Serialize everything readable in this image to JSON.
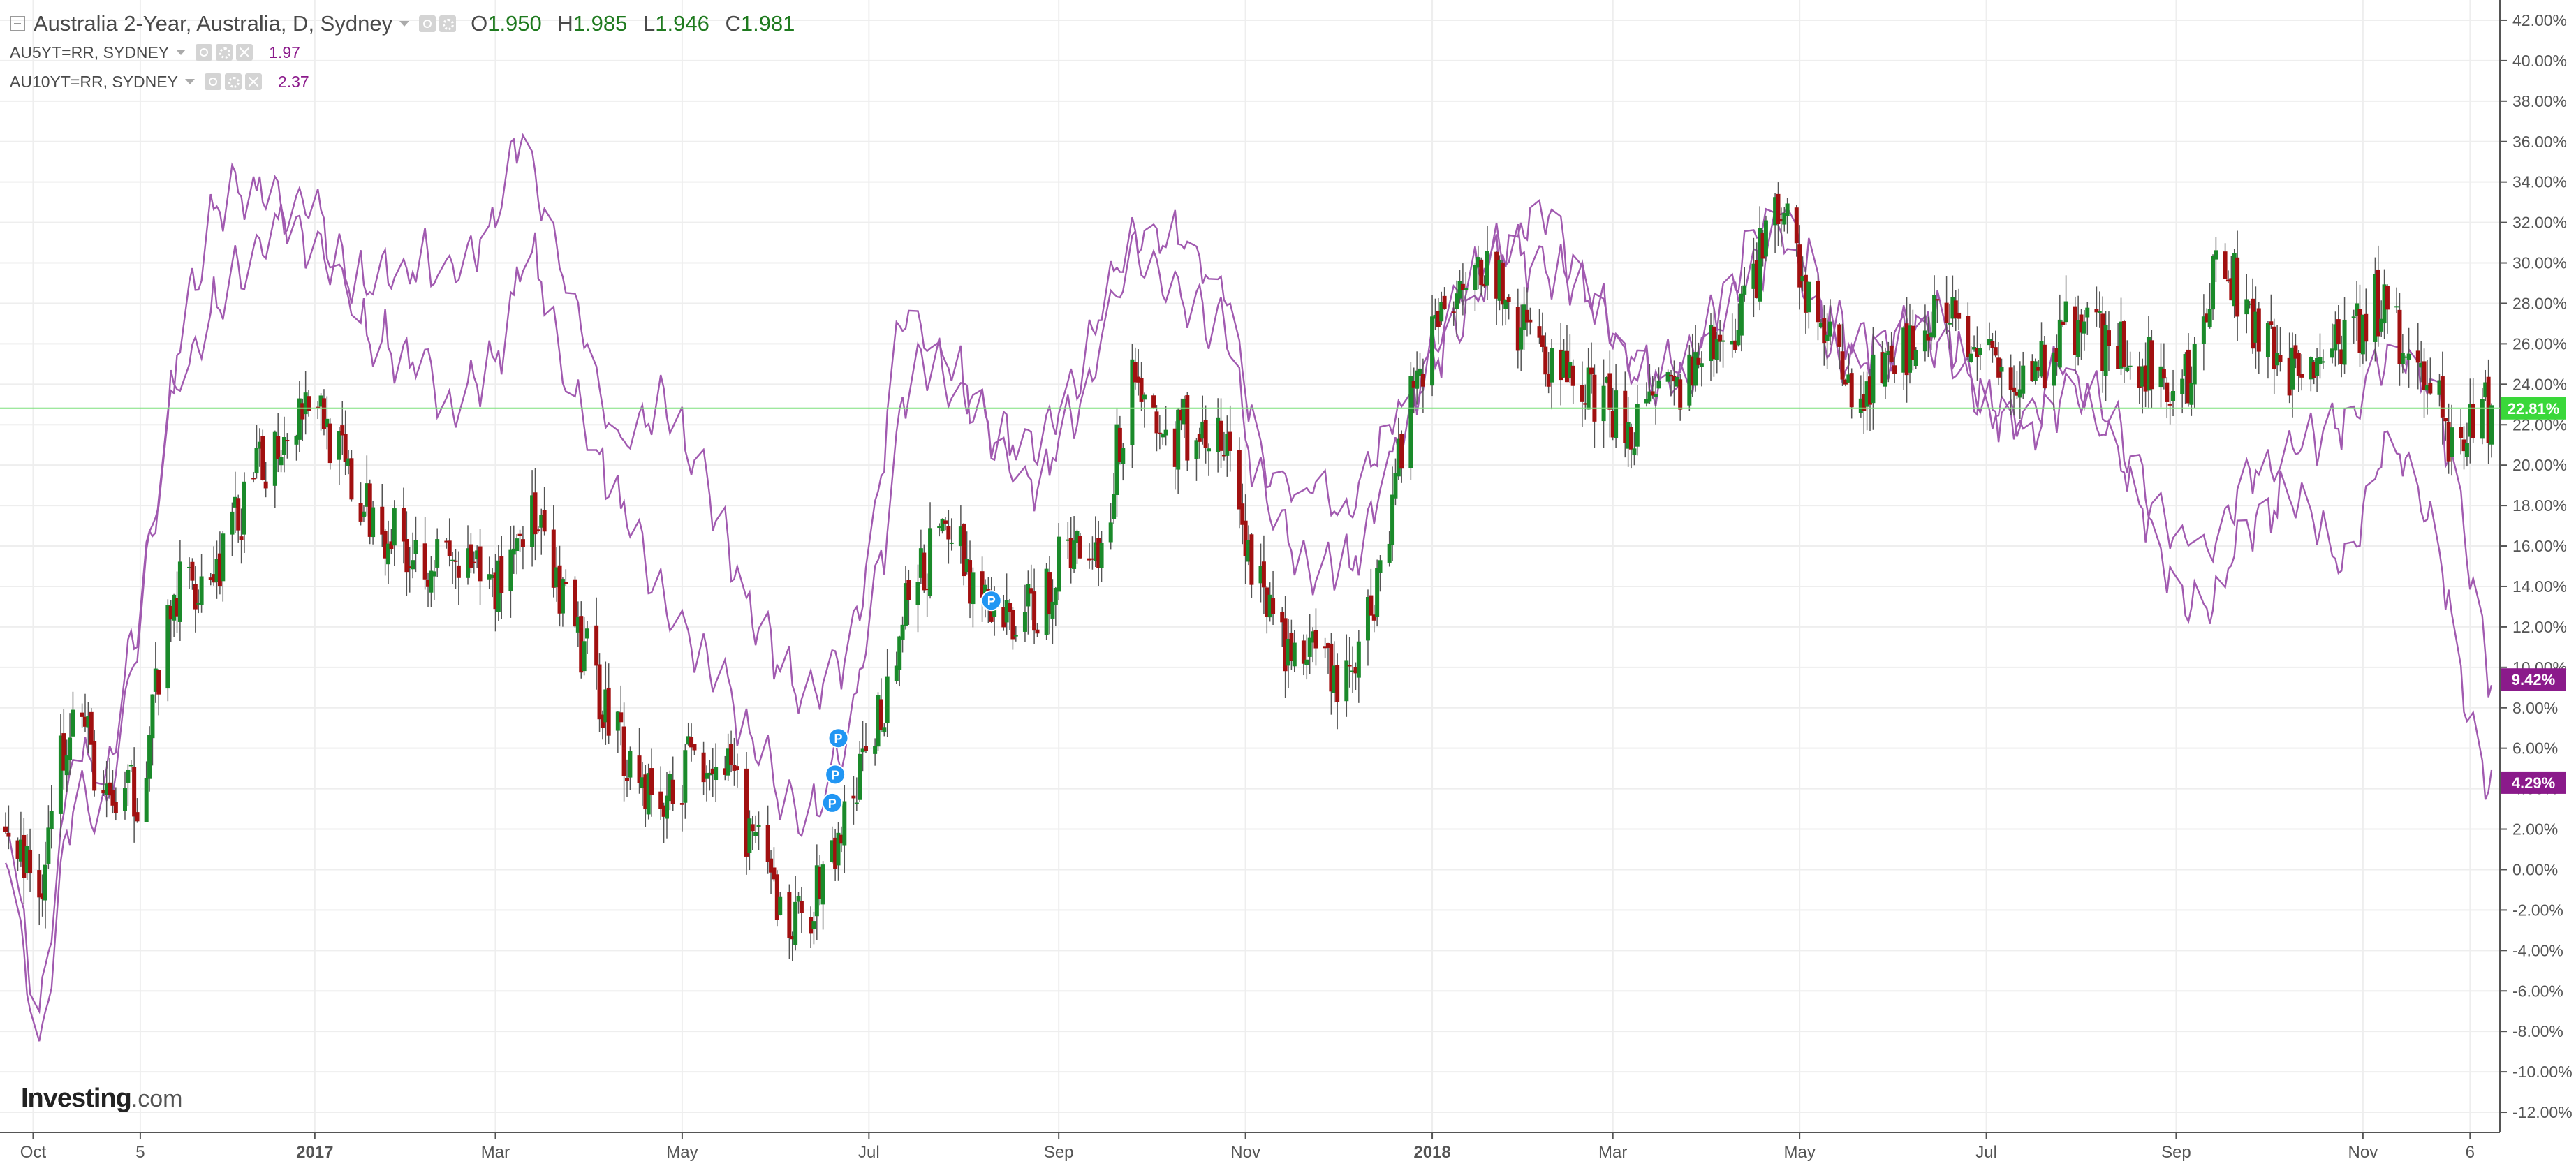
{
  "legend": {
    "main_title": "Australia 2-Year, Australia, D, Sydney",
    "ohlc": {
      "o_label": "O",
      "o": "1.950",
      "h_label": "H",
      "h": "1.985",
      "l_label": "L",
      "l": "1.946",
      "c_label": "C",
      "c": "1.981"
    },
    "overlays": [
      {
        "name": "AU5YT=RR, SYDNEY",
        "value": "1.97"
      },
      {
        "name": "AU10YT=RR, SYDNEY",
        "value": "2.37"
      }
    ]
  },
  "logo": {
    "brand": "Investing",
    "domain": ".com"
  },
  "colors": {
    "up": "#1a8a2a",
    "down": "#a11010",
    "overlay": "#a15ab0",
    "grid": "#eeeeee",
    "axis_text": "#555555",
    "current_line": "#7ee07e",
    "current_badge": "#3ad83a",
    "overlay_badge": "#8b1a8b",
    "marker": "#2196f3"
  },
  "chart_data": {
    "type": "candlestick",
    "yscale": "percent",
    "ylim": [
      -13,
      43
    ],
    "y_ticks": [
      "42.00%",
      "40.00%",
      "38.00%",
      "36.00%",
      "34.00%",
      "32.00%",
      "30.00%",
      "28.00%",
      "26.00%",
      "24.00%",
      "22.00%",
      "20.00%",
      "18.00%",
      "16.00%",
      "14.00%",
      "12.00%",
      "10.00%",
      "8.00%",
      "6.00%",
      "4.00%",
      "2.00%",
      "0.00%",
      "-2.00%",
      "-4.00%",
      "-6.00%",
      "-8.00%",
      "-10.00%",
      "-12.00%"
    ],
    "x_start": "2016-09-22",
    "x_end": "2018-12-13",
    "x_ticks": [
      {
        "label": "Oct",
        "date": "2016-10-01",
        "bold": false
      },
      {
        "label": "5",
        "date": "2016-11-05",
        "bold": false
      },
      {
        "label": "2017",
        "date": "2017-01-01",
        "bold": true
      },
      {
        "label": "Mar",
        "date": "2017-03-01",
        "bold": false
      },
      {
        "label": "May",
        "date": "2017-05-01",
        "bold": false
      },
      {
        "label": "Jul",
        "date": "2017-07-01",
        "bold": false
      },
      {
        "label": "Sep",
        "date": "2017-09-01",
        "bold": false
      },
      {
        "label": "Nov",
        "date": "2017-11-01",
        "bold": false
      },
      {
        "label": "2018",
        "date": "2018-01-01",
        "bold": true
      },
      {
        "label": "Mar",
        "date": "2018-03-01",
        "bold": false
      },
      {
        "label": "May",
        "date": "2018-05-01",
        "bold": false
      },
      {
        "label": "Jul",
        "date": "2018-07-01",
        "bold": false
      },
      {
        "label": "Sep",
        "date": "2018-09-01",
        "bold": false
      },
      {
        "label": "Nov",
        "date": "2018-11-01",
        "bold": false
      },
      {
        "label": "6",
        "date": "2018-12-06",
        "bold": false
      }
    ],
    "candles_series": {
      "name": "Australia 2-Year",
      "close_path": [
        [
          "2016-09-22",
          2
        ],
        [
          "2016-10-03",
          -1
        ],
        [
          "2016-10-14",
          9
        ],
        [
          "2016-10-25",
          3
        ],
        [
          "2016-11-05",
          4
        ],
        [
          "2016-11-10",
          9
        ],
        [
          "2016-11-18",
          14
        ],
        [
          "2016-11-30",
          15
        ],
        [
          "2016-12-15",
          20
        ],
        [
          "2016-12-31",
          24
        ],
        [
          "2017-01-15",
          18
        ],
        [
          "2017-02-01",
          16
        ],
        [
          "2017-02-15",
          15
        ],
        [
          "2017-03-01",
          14
        ],
        [
          "2017-03-12",
          18
        ],
        [
          "2017-03-20",
          14
        ],
        [
          "2017-04-01",
          10
        ],
        [
          "2017-04-15",
          5
        ],
        [
          "2017-04-25",
          3
        ],
        [
          "2017-05-05",
          6
        ],
        [
          "2017-05-15",
          5
        ],
        [
          "2017-05-25",
          1
        ],
        [
          "2017-06-05",
          -3
        ],
        [
          "2017-06-15",
          -1
        ],
        [
          "2017-06-25",
          3
        ],
        [
          "2017-07-05",
          8
        ],
        [
          "2017-07-15",
          14
        ],
        [
          "2017-07-28",
          17
        ],
        [
          "2017-08-10",
          12
        ],
        [
          "2017-08-25",
          13
        ],
        [
          "2017-09-05",
          16
        ],
        [
          "2017-09-15",
          16
        ],
        [
          "2017-09-25",
          25
        ],
        [
          "2017-10-05",
          21
        ],
        [
          "2017-10-15",
          22
        ],
        [
          "2017-10-25",
          21
        ],
        [
          "2017-11-05",
          14
        ],
        [
          "2017-11-15",
          11
        ],
        [
          "2017-11-25",
          10
        ],
        [
          "2017-12-05",
          9
        ],
        [
          "2017-12-15",
          15
        ],
        [
          "2017-12-25",
          24
        ],
        [
          "2018-01-05",
          28
        ],
        [
          "2018-01-15",
          31
        ],
        [
          "2018-01-28",
          27
        ],
        [
          "2018-02-10",
          25
        ],
        [
          "2018-02-25",
          23
        ],
        [
          "2018-03-10",
          22
        ],
        [
          "2018-03-25",
          24
        ],
        [
          "2018-04-10",
          27
        ],
        [
          "2018-04-25",
          33
        ],
        [
          "2018-05-05",
          28
        ],
        [
          "2018-05-15",
          24
        ],
        [
          "2018-05-25",
          24
        ],
        [
          "2018-06-05",
          26
        ],
        [
          "2018-06-15",
          28
        ],
        [
          "2018-06-30",
          25
        ],
        [
          "2018-07-15",
          24
        ],
        [
          "2018-07-28",
          27
        ],
        [
          "2018-08-10",
          26
        ],
        [
          "2018-08-25",
          25
        ],
        [
          "2018-09-05",
          24
        ],
        [
          "2018-09-15",
          31
        ],
        [
          "2018-09-25",
          27
        ],
        [
          "2018-10-05",
          25
        ],
        [
          "2018-10-20",
          25
        ],
        [
          "2018-11-05",
          28
        ],
        [
          "2018-11-20",
          25
        ],
        [
          "2018-12-01",
          21
        ],
        [
          "2018-12-13",
          22.8
        ]
      ]
    },
    "overlay_series": [
      {
        "name": "AU5YT=RR, SYDNEY",
        "label_value": "9.42%",
        "points": [
          [
            "2016-09-22",
            3
          ],
          [
            "2016-10-03",
            -8
          ],
          [
            "2016-10-14",
            6
          ],
          [
            "2016-10-25",
            4
          ],
          [
            "2016-11-05",
            13
          ],
          [
            "2016-11-15",
            23
          ],
          [
            "2016-11-30",
            28
          ],
          [
            "2016-12-15",
            31
          ],
          [
            "2016-12-31",
            33
          ],
          [
            "2017-01-15",
            27
          ],
          [
            "2017-02-01",
            25
          ],
          [
            "2017-02-15",
            23
          ],
          [
            "2017-03-01",
            25
          ],
          [
            "2017-03-12",
            31
          ],
          [
            "2017-03-25",
            24
          ],
          [
            "2017-04-10",
            18
          ],
          [
            "2017-04-25",
            13
          ],
          [
            "2017-05-10",
            10
          ],
          [
            "2017-05-25",
            6
          ],
          [
            "2017-06-10",
            2
          ],
          [
            "2017-06-25",
            7
          ],
          [
            "2017-07-05",
            15
          ],
          [
            "2017-07-15",
            26
          ],
          [
            "2017-07-28",
            24
          ],
          [
            "2017-08-15",
            21
          ],
          [
            "2017-08-30",
            22
          ],
          [
            "2017-09-10",
            26
          ],
          [
            "2017-09-25",
            31
          ],
          [
            "2017-10-10",
            28
          ],
          [
            "2017-10-25",
            27
          ],
          [
            "2017-11-05",
            19
          ],
          [
            "2017-11-20",
            15
          ],
          [
            "2017-12-05",
            15
          ],
          [
            "2017-12-20",
            21
          ],
          [
            "2018-01-05",
            27
          ],
          [
            "2018-01-20",
            31
          ],
          [
            "2018-02-05",
            30
          ],
          [
            "2018-02-25",
            28
          ],
          [
            "2018-03-10",
            24
          ],
          [
            "2018-03-25",
            26
          ],
          [
            "2018-04-10",
            28
          ],
          [
            "2018-04-25",
            32
          ],
          [
            "2018-05-10",
            27
          ],
          [
            "2018-05-25",
            26
          ],
          [
            "2018-06-10",
            27
          ],
          [
            "2018-06-25",
            24
          ],
          [
            "2018-07-10",
            22
          ],
          [
            "2018-07-25",
            25
          ],
          [
            "2018-08-10",
            23
          ],
          [
            "2018-08-25",
            18
          ],
          [
            "2018-09-10",
            16
          ],
          [
            "2018-09-25",
            20
          ],
          [
            "2018-10-10",
            21
          ],
          [
            "2018-10-25",
            22
          ],
          [
            "2018-11-10",
            26
          ],
          [
            "2018-11-25",
            24
          ],
          [
            "2018-12-05",
            16
          ],
          [
            "2018-12-13",
            9.4
          ]
        ]
      },
      {
        "name": "AU10YT=RR, SYDNEY",
        "label_value": "4.29%",
        "points": [
          [
            "2016-09-22",
            1
          ],
          [
            "2016-10-03",
            -9
          ],
          [
            "2016-10-14",
            4
          ],
          [
            "2016-10-25",
            3
          ],
          [
            "2016-11-05",
            12
          ],
          [
            "2016-11-18",
            27
          ],
          [
            "2016-11-30",
            33
          ],
          [
            "2016-12-15",
            34
          ],
          [
            "2016-12-31",
            31
          ],
          [
            "2017-01-15",
            29
          ],
          [
            "2017-02-01",
            30
          ],
          [
            "2017-02-15",
            30
          ],
          [
            "2017-03-01",
            32
          ],
          [
            "2017-03-10",
            37
          ],
          [
            "2017-03-25",
            29
          ],
          [
            "2017-04-10",
            21
          ],
          [
            "2017-04-25",
            23
          ],
          [
            "2017-05-10",
            19
          ],
          [
            "2017-05-25",
            12
          ],
          [
            "2017-06-10",
            9
          ],
          [
            "2017-06-25",
            11
          ],
          [
            "2017-07-05",
            20
          ],
          [
            "2017-07-12",
            28
          ],
          [
            "2017-07-25",
            26
          ],
          [
            "2017-08-10",
            22
          ],
          [
            "2017-08-25",
            19
          ],
          [
            "2017-09-10",
            24
          ],
          [
            "2017-09-25",
            31
          ],
          [
            "2017-10-10",
            32
          ],
          [
            "2017-10-25",
            29
          ],
          [
            "2017-11-05",
            21
          ],
          [
            "2017-11-20",
            19
          ],
          [
            "2017-12-05",
            18
          ],
          [
            "2017-12-20",
            23
          ],
          [
            "2018-01-05",
            26
          ],
          [
            "2018-01-20",
            30
          ],
          [
            "2018-02-05",
            33
          ],
          [
            "2018-02-25",
            28
          ],
          [
            "2018-03-10",
            25
          ],
          [
            "2018-03-25",
            24
          ],
          [
            "2018-04-10",
            30
          ],
          [
            "2018-04-25",
            33
          ],
          [
            "2018-05-05",
            30
          ],
          [
            "2018-05-15",
            25
          ],
          [
            "2018-05-30",
            26
          ],
          [
            "2018-06-15",
            28
          ],
          [
            "2018-06-30",
            23
          ],
          [
            "2018-07-15",
            22
          ],
          [
            "2018-07-30",
            24
          ],
          [
            "2018-08-15",
            20
          ],
          [
            "2018-08-30",
            15
          ],
          [
            "2018-09-10",
            13
          ],
          [
            "2018-09-25",
            17
          ],
          [
            "2018-10-10",
            19
          ],
          [
            "2018-10-25",
            15
          ],
          [
            "2018-11-10",
            22
          ],
          [
            "2018-11-25",
            17
          ],
          [
            "2018-12-05",
            8
          ],
          [
            "2018-12-13",
            4.3
          ]
        ]
      }
    ],
    "current_value": {
      "value": 22.81,
      "label": "22.81%"
    },
    "markers": [
      {
        "label": "P",
        "date": "2017-06-21",
        "y": 6.5
      },
      {
        "label": "P",
        "date": "2017-06-20",
        "y": 4.7
      },
      {
        "label": "P",
        "date": "2017-06-19",
        "y": 3.3
      },
      {
        "label": "P",
        "date": "2017-08-10",
        "y": 13.3
      }
    ]
  }
}
